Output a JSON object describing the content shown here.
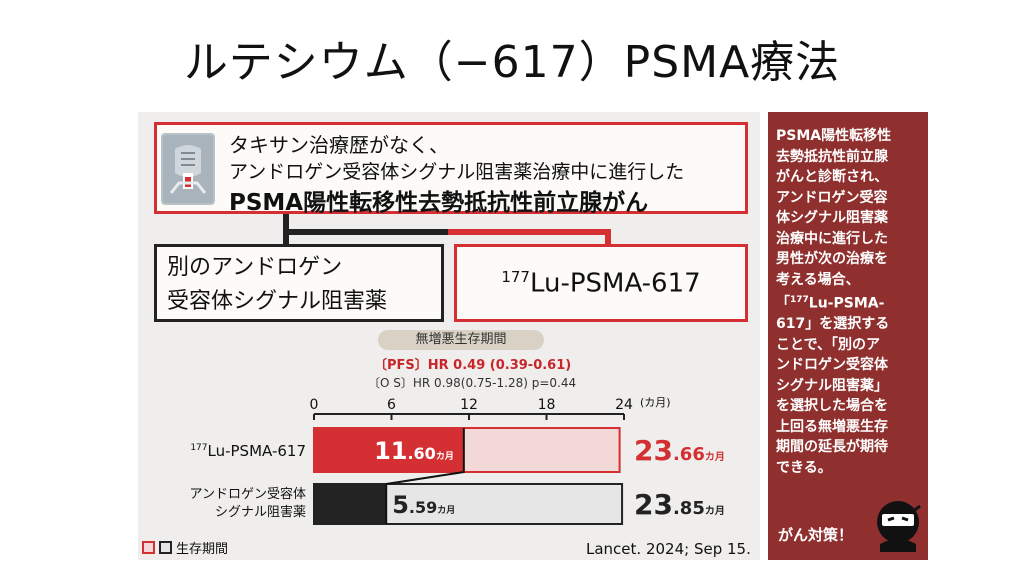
{
  "slide": {
    "title": "ルテシウム（−617）PSMA療法"
  },
  "diagram": {
    "condition_lines": [
      "タキサン治療歴がなく、",
      "アンドロゲン受容体シグナル阻害薬治療中に進行した",
      "PSMA陽性転移性去勢抵抗性前立腺がん"
    ],
    "option_left_lines": [
      "別のアンドロゲン",
      "受容体シグナル阻害薬"
    ],
    "option_right_sup": "177",
    "option_right_text": "Lu-PSMA-617",
    "colors": {
      "red": "#d42f32",
      "dark": "#222222"
    }
  },
  "stats": {
    "pill_label": "無増悪生存期間",
    "pfs": "〔PFS〕HR 0.49 (0.39-0.61)",
    "os": "〔O S〕HR 0.98(0.75-1.28) p=0.44"
  },
  "chart_data": {
    "type": "bar",
    "x_unit": "(カ月)",
    "xlim": [
      0,
      24
    ],
    "x_ticks": [
      0,
      6,
      12,
      18,
      24
    ],
    "series_labels": [
      "177Lu-PSMA-617",
      "アンドロゲン受容体シグナル阻害薬"
    ],
    "rows": [
      {
        "label_sup": "177",
        "label": "Lu-PSMA-617",
        "pfs": 11.6,
        "total": 23.66,
        "pfs_int": "11",
        "pfs_dec": ".60",
        "total_int": "23",
        "total_dec": ".66",
        "unit": "カ月",
        "pfs_color": "#d42f32",
        "total_color": "#f2d9d8",
        "border_color": "#d42f32",
        "text_color": "#ffffff",
        "total_text_color": "#d42f32"
      },
      {
        "label_lines": [
          "アンドロゲン受容体",
          "シグナル阻害薬"
        ],
        "pfs": 5.59,
        "total": 23.85,
        "pfs_int": "5",
        "pfs_dec": ".59",
        "total_int": "23",
        "total_dec": ".85",
        "unit": "カ月",
        "pfs_color": "#232323",
        "total_color": "#e6e6e6",
        "border_color": "#232323",
        "text_color": "#232323",
        "total_text_color": "#232323"
      }
    ],
    "legend": "生存期間"
  },
  "citation": "Lancet. 2024; Sep 15.",
  "sidebar": {
    "lines": [
      "PSMA陽性転移性",
      "去勢抵抗性前立腺",
      "がんと診断され、",
      "アンドロゲン受容",
      "体シグナル阻害薬",
      "治療中に進行した",
      "男性が次の治療を",
      "考える場合、",
      "「",
      "617」を選択する",
      "ことで、「別のア",
      "ンドロゲン受容体",
      "シグナル阻害薬」",
      "を選択した場合を",
      "上回る無増悪生存",
      "期間の延長が期待",
      "できる。"
    ],
    "line9_sup": "177",
    "line9_rest": "Lu-PSMA-",
    "footer": "がん対策！",
    "bg_color": "#8f302f"
  }
}
